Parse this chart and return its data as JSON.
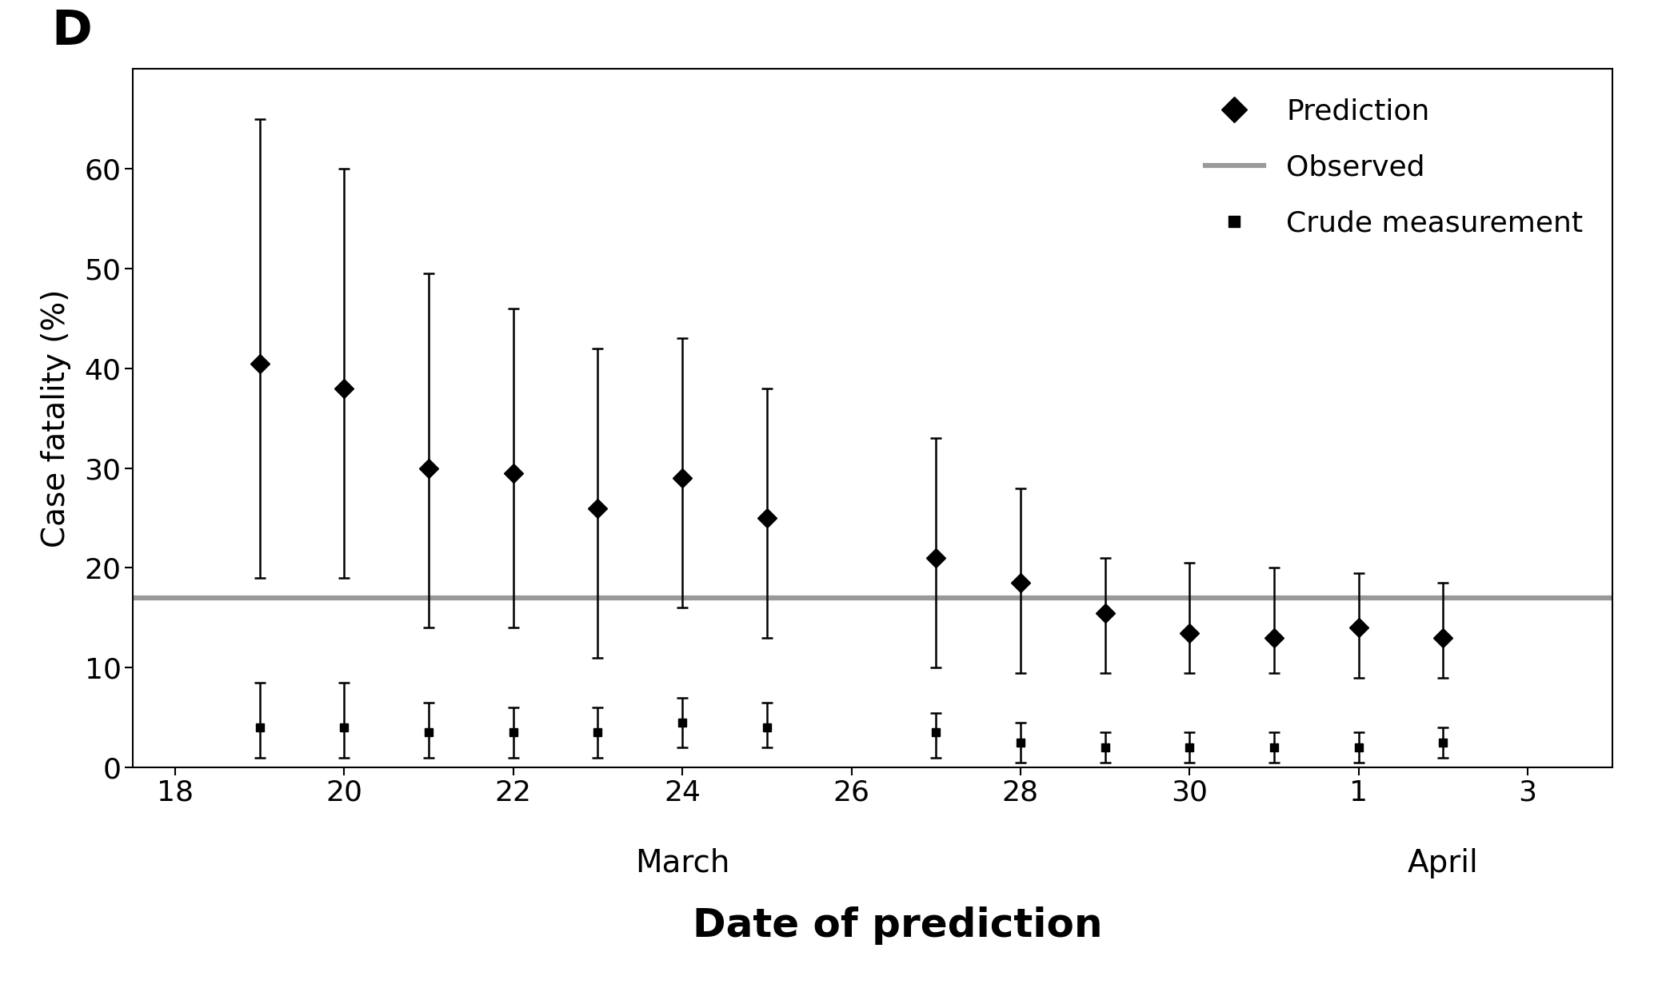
{
  "title_label": "D",
  "xlabel": "Date of prediction",
  "ylabel": "Case fatality (%)",
  "ylim": [
    0,
    70
  ],
  "yticks": [
    0,
    10,
    20,
    30,
    40,
    50,
    60
  ],
  "xtick_positions": [
    18,
    20,
    22,
    24,
    26,
    28,
    30,
    32,
    34
  ],
  "xtick_labels": [
    "18",
    "20",
    "22",
    "24",
    "26",
    "28",
    "30",
    "1",
    "3"
  ],
  "xlim": [
    17.5,
    35.0
  ],
  "observed_y": 17.0,
  "prediction_data": {
    "x": [
      19,
      20,
      21,
      22,
      23,
      24,
      25,
      27,
      28,
      29,
      30,
      31,
      32,
      33
    ],
    "y": [
      40.5,
      38.0,
      30.0,
      29.5,
      26.0,
      29.0,
      25.0,
      21.0,
      18.5,
      15.5,
      13.5,
      13.0,
      14.0,
      13.0
    ],
    "y_upper": [
      65.0,
      60.0,
      49.5,
      46.0,
      42.0,
      43.0,
      38.0,
      33.0,
      28.0,
      21.0,
      20.5,
      20.0,
      19.5,
      18.5
    ],
    "y_lower": [
      19.0,
      19.0,
      14.0,
      14.0,
      11.0,
      16.0,
      13.0,
      10.0,
      9.5,
      9.5,
      9.5,
      9.5,
      9.0,
      9.0
    ]
  },
  "crude_data": {
    "x": [
      19,
      20,
      21,
      22,
      23,
      24,
      25,
      27,
      28,
      29,
      30,
      31,
      32,
      33
    ],
    "y": [
      4.0,
      4.0,
      3.5,
      3.5,
      3.5,
      4.5,
      4.0,
      3.5,
      2.5,
      2.0,
      2.0,
      2.0,
      2.0,
      2.5
    ],
    "y_upper": [
      8.5,
      8.5,
      6.5,
      6.0,
      6.0,
      7.0,
      6.5,
      5.5,
      4.5,
      3.5,
      3.5,
      3.5,
      3.5,
      4.0
    ],
    "y_lower": [
      1.0,
      1.0,
      1.0,
      1.0,
      1.0,
      2.0,
      2.0,
      1.0,
      0.5,
      0.5,
      0.5,
      0.5,
      0.5,
      1.0
    ]
  },
  "colors": {
    "prediction": "#000000",
    "observed": "#999999",
    "crude": "#000000",
    "background": "#ffffff"
  },
  "observed_linewidth": 4.5,
  "prediction_marker": "D",
  "crude_marker": "s",
  "errorbar_capsize": 5,
  "errorbar_linewidth": 1.8,
  "marker_size_prediction": 12,
  "marker_size_crude": 7
}
